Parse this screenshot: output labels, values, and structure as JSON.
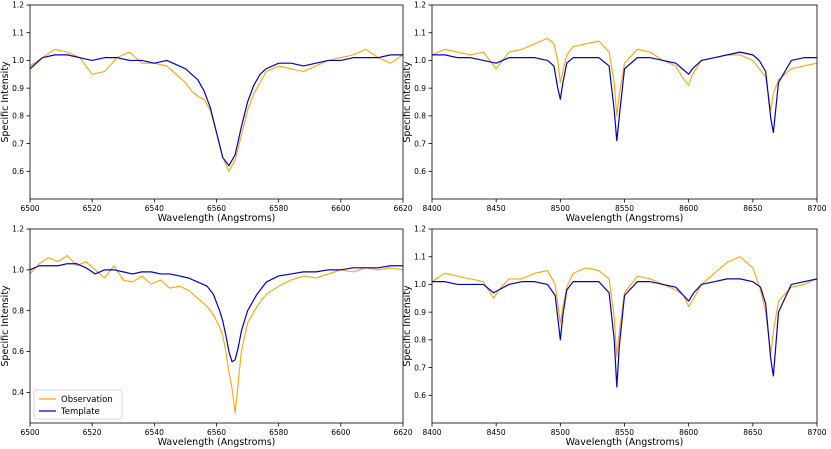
{
  "colors": {
    "observation": "#FFA500",
    "template": "#0000CC"
  },
  "legend": {
    "observation_label": "Observation",
    "template_label": "Template"
  },
  "chart_data": [
    {
      "type": "line",
      "xlabel": "Wavelength (Angstroms)",
      "ylabel": "Specific Intensity",
      "xlim": [
        6500,
        6620
      ],
      "ylim": [
        0.5,
        1.2
      ],
      "xticks": [
        6500,
        6520,
        6540,
        6560,
        6580,
        6600,
        6620
      ],
      "yticks": [
        0.6,
        0.7,
        0.8,
        0.9,
        1.0,
        1.1,
        1.2
      ],
      "grid": false,
      "series": [
        {
          "name": "Observation",
          "x": [
            6500,
            6504,
            6508,
            6512,
            6516,
            6520,
            6524,
            6528,
            6532,
            6536,
            6540,
            6544,
            6548,
            6550,
            6552,
            6554,
            6556,
            6558,
            6560,
            6562,
            6564,
            6566,
            6568,
            6570,
            6572,
            6574,
            6576,
            6580,
            6584,
            6588,
            6592,
            6596,
            6600,
            6604,
            6608,
            6612,
            6616,
            6620
          ],
          "y": [
            0.98,
            1.01,
            1.04,
            1.03,
            1.01,
            0.95,
            0.96,
            1.01,
            1.03,
            0.99,
            0.99,
            0.98,
            0.94,
            0.92,
            0.89,
            0.87,
            0.86,
            0.82,
            0.74,
            0.65,
            0.6,
            0.64,
            0.73,
            0.82,
            0.88,
            0.92,
            0.96,
            0.98,
            0.97,
            0.96,
            0.98,
            1.0,
            1.01,
            1.02,
            1.04,
            1.01,
            0.99,
            1.02
          ]
        },
        {
          "name": "Template",
          "x": [
            6500,
            6504,
            6508,
            6512,
            6516,
            6520,
            6524,
            6528,
            6532,
            6536,
            6540,
            6544,
            6548,
            6550,
            6552,
            6554,
            6556,
            6558,
            6560,
            6562,
            6564,
            6566,
            6568,
            6570,
            6572,
            6574,
            6576,
            6580,
            6584,
            6588,
            6592,
            6596,
            6600,
            6604,
            6608,
            6612,
            6616,
            6620
          ],
          "y": [
            0.97,
            1.01,
            1.02,
            1.02,
            1.01,
            1.0,
            1.01,
            1.01,
            1.0,
            1.0,
            0.99,
            1.0,
            0.98,
            0.97,
            0.95,
            0.93,
            0.89,
            0.83,
            0.74,
            0.65,
            0.62,
            0.66,
            0.76,
            0.85,
            0.91,
            0.95,
            0.97,
            0.99,
            0.99,
            0.98,
            0.99,
            1.0,
            1.0,
            1.01,
            1.01,
            1.01,
            1.02,
            1.02
          ]
        }
      ]
    },
    {
      "type": "line",
      "xlabel": "Wavelength (Angstroms)",
      "ylabel": "Specific Intensity",
      "xlim": [
        8400,
        8700
      ],
      "ylim": [
        0.5,
        1.2
      ],
      "xticks": [
        8400,
        8450,
        8500,
        8550,
        8600,
        8650,
        8700
      ],
      "yticks": [
        0.6,
        0.7,
        0.8,
        0.9,
        1.0,
        1.1,
        1.2
      ],
      "grid": false,
      "series": [
        {
          "name": "Observation",
          "x": [
            8400,
            8410,
            8420,
            8430,
            8440,
            8450,
            8460,
            8470,
            8480,
            8490,
            8495,
            8498,
            8500,
            8502,
            8505,
            8510,
            8520,
            8530,
            8538,
            8542,
            8544,
            8546,
            8550,
            8560,
            8570,
            8580,
            8590,
            8595,
            8600,
            8603,
            8610,
            8620,
            8630,
            8640,
            8650,
            8655,
            8660,
            8664,
            8666,
            8670,
            8680,
            8690,
            8700
          ],
          "y": [
            1.02,
            1.04,
            1.03,
            1.02,
            1.03,
            0.97,
            1.03,
            1.04,
            1.06,
            1.08,
            1.06,
            1.0,
            0.92,
            0.96,
            1.02,
            1.05,
            1.06,
            1.07,
            1.03,
            0.92,
            0.8,
            0.88,
            0.99,
            1.04,
            1.03,
            1.0,
            0.98,
            0.94,
            0.91,
            0.95,
            1.0,
            1.01,
            1.02,
            1.02,
            1.0,
            0.97,
            0.94,
            0.82,
            0.88,
            0.93,
            0.97,
            0.98,
            0.99
          ]
        },
        {
          "name": "Template",
          "x": [
            8400,
            8410,
            8420,
            8430,
            8440,
            8450,
            8460,
            8470,
            8480,
            8490,
            8495,
            8498,
            8500,
            8502,
            8505,
            8510,
            8520,
            8530,
            8538,
            8542,
            8544,
            8546,
            8550,
            8560,
            8570,
            8580,
            8590,
            8595,
            8600,
            8603,
            8610,
            8620,
            8630,
            8640,
            8650,
            8655,
            8660,
            8664,
            8666,
            8670,
            8680,
            8690,
            8700
          ],
          "y": [
            1.02,
            1.02,
            1.01,
            1.01,
            1.0,
            0.99,
            1.01,
            1.01,
            1.01,
            1.0,
            0.98,
            0.9,
            0.86,
            0.92,
            0.99,
            1.01,
            1.01,
            1.01,
            0.98,
            0.82,
            0.71,
            0.8,
            0.97,
            1.01,
            1.01,
            1.0,
            0.99,
            0.97,
            0.95,
            0.97,
            1.0,
            1.01,
            1.02,
            1.03,
            1.02,
            1.0,
            0.96,
            0.79,
            0.74,
            0.92,
            1.0,
            1.01,
            1.01
          ]
        }
      ]
    },
    {
      "type": "line",
      "xlabel": "Wavelength (Angstroms)",
      "ylabel": "Specific Intensity",
      "xlim": [
        6500,
        6620
      ],
      "ylim": [
        0.25,
        1.2
      ],
      "xticks": [
        6500,
        6520,
        6540,
        6560,
        6580,
        6600,
        6620
      ],
      "yticks": [
        0.4,
        0.6,
        0.8,
        1.0,
        1.2
      ],
      "grid": false,
      "legend": "lower-left",
      "series": [
        {
          "name": "Observation",
          "x": [
            6500,
            6503,
            6506,
            6509,
            6512,
            6515,
            6518,
            6521,
            6524,
            6527,
            6530,
            6533,
            6536,
            6539,
            6542,
            6545,
            6548,
            6551,
            6554,
            6557,
            6559,
            6561,
            6562,
            6563,
            6564,
            6565,
            6566,
            6567,
            6568,
            6570,
            6573,
            6576,
            6580,
            6584,
            6588,
            6592,
            6596,
            6600,
            6604,
            6608,
            6612,
            6616,
            6620
          ],
          "y": [
            0.98,
            1.03,
            1.06,
            1.04,
            1.07,
            1.02,
            1.04,
            1.0,
            0.96,
            1.02,
            0.95,
            0.94,
            0.97,
            0.93,
            0.95,
            0.91,
            0.92,
            0.9,
            0.86,
            0.82,
            0.78,
            0.72,
            0.68,
            0.6,
            0.5,
            0.42,
            0.3,
            0.45,
            0.6,
            0.74,
            0.82,
            0.88,
            0.92,
            0.95,
            0.97,
            0.96,
            0.98,
            1.0,
            0.99,
            1.01,
            1.0,
            1.01,
            1.0
          ]
        },
        {
          "name": "Template",
          "x": [
            6500,
            6503,
            6506,
            6509,
            6512,
            6515,
            6518,
            6521,
            6524,
            6527,
            6530,
            6533,
            6536,
            6539,
            6542,
            6545,
            6548,
            6551,
            6554,
            6557,
            6559,
            6561,
            6562,
            6563,
            6564,
            6565,
            6566,
            6567,
            6568,
            6570,
            6573,
            6576,
            6580,
            6584,
            6588,
            6592,
            6596,
            6600,
            6604,
            6608,
            6612,
            6616,
            6620
          ],
          "y": [
            1.0,
            1.02,
            1.02,
            1.02,
            1.03,
            1.03,
            1.01,
            0.98,
            1.0,
            1.0,
            0.99,
            0.98,
            0.99,
            0.99,
            0.98,
            0.98,
            0.97,
            0.96,
            0.94,
            0.92,
            0.88,
            0.8,
            0.75,
            0.68,
            0.6,
            0.55,
            0.56,
            0.62,
            0.7,
            0.8,
            0.88,
            0.94,
            0.97,
            0.98,
            0.99,
            0.99,
            1.0,
            1.0,
            1.01,
            1.01,
            1.01,
            1.02,
            1.02
          ]
        }
      ]
    },
    {
      "type": "line",
      "xlabel": "Wavelength (Angstroms)",
      "ylabel": "Specific Intensity",
      "xlim": [
        8400,
        8700
      ],
      "ylim": [
        0.5,
        1.2
      ],
      "xticks": [
        8400,
        8450,
        8500,
        8550,
        8600,
        8650,
        8700
      ],
      "yticks": [
        0.6,
        0.7,
        0.8,
        0.9,
        1.0,
        1.1,
        1.2
      ],
      "grid": false,
      "series": [
        {
          "name": "Observation",
          "x": [
            8400,
            8410,
            8420,
            8430,
            8440,
            8448,
            8452,
            8460,
            8470,
            8480,
            8490,
            8496,
            8498,
            8500,
            8502,
            8505,
            8510,
            8520,
            8530,
            8538,
            8542,
            8544,
            8546,
            8550,
            8560,
            8570,
            8580,
            8590,
            8596,
            8600,
            8604,
            8610,
            8620,
            8630,
            8640,
            8650,
            8656,
            8660,
            8664,
            8666,
            8670,
            8680,
            8690,
            8700
          ],
          "y": [
            1.01,
            1.04,
            1.03,
            1.02,
            1.01,
            0.95,
            0.98,
            1.02,
            1.02,
            1.04,
            1.05,
            1.0,
            0.93,
            0.86,
            0.92,
            0.99,
            1.04,
            1.06,
            1.05,
            1.02,
            0.88,
            0.74,
            0.83,
            0.97,
            1.03,
            1.02,
            1.0,
            0.98,
            0.96,
            0.92,
            0.95,
            1.0,
            1.04,
            1.08,
            1.1,
            1.06,
            0.98,
            0.9,
            0.75,
            0.83,
            0.94,
            0.99,
            1.0,
            1.02
          ]
        },
        {
          "name": "Template",
          "x": [
            8400,
            8410,
            8420,
            8430,
            8440,
            8448,
            8452,
            8460,
            8470,
            8480,
            8490,
            8496,
            8498,
            8500,
            8502,
            8505,
            8510,
            8520,
            8530,
            8538,
            8542,
            8544,
            8546,
            8550,
            8560,
            8570,
            8580,
            8590,
            8596,
            8600,
            8604,
            8610,
            8620,
            8630,
            8640,
            8650,
            8656,
            8660,
            8664,
            8666,
            8670,
            8680,
            8690,
            8700
          ],
          "y": [
            1.01,
            1.01,
            1.0,
            1.0,
            1.0,
            0.97,
            0.98,
            1.0,
            1.01,
            1.01,
            1.0,
            0.96,
            0.88,
            0.8,
            0.89,
            0.98,
            1.01,
            1.01,
            1.01,
            0.97,
            0.8,
            0.63,
            0.78,
            0.96,
            1.01,
            1.01,
            1.0,
            0.99,
            0.96,
            0.94,
            0.97,
            1.0,
            1.01,
            1.02,
            1.02,
            1.01,
            0.99,
            0.93,
            0.73,
            0.67,
            0.9,
            1.0,
            1.01,
            1.02
          ]
        }
      ]
    }
  ]
}
